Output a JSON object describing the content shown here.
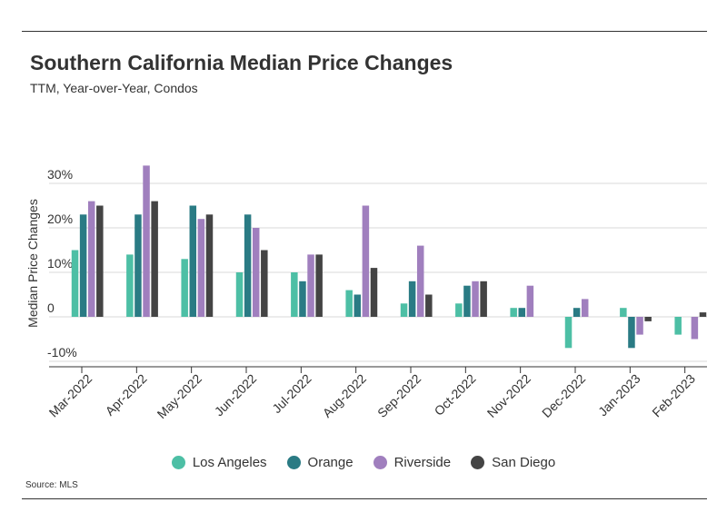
{
  "header": {
    "title": "Southern California Median Price Changes",
    "subtitle": "TTM, Year-over-Year, Condos"
  },
  "source": "Source: MLS",
  "chart_data": {
    "type": "bar",
    "title": "Southern California Median Price Changes",
    "subtitle": "TTM, Year-over-Year, Condos",
    "xlabel": "",
    "ylabel": "Median Price Changes",
    "ylim": [
      -12,
      35
    ],
    "yticks": [
      -10,
      0,
      10,
      20,
      30
    ],
    "ytick_labels": [
      "-10%",
      "0",
      "10%",
      "20%",
      "30%"
    ],
    "grid": true,
    "legend_position": "bottom",
    "categories": [
      "Mar-2022",
      "Apr-2022",
      "May-2022",
      "Jun-2022",
      "Jul-2022",
      "Aug-2022",
      "Sep-2022",
      "Oct-2022",
      "Nov-2022",
      "Dec-2022",
      "Jan-2023",
      "Feb-2023"
    ],
    "series": [
      {
        "name": "Los Angeles",
        "color": "#4dbfa5",
        "values": [
          15,
          14,
          13,
          10,
          10,
          6,
          3,
          3,
          2,
          -7,
          2,
          -4
        ]
      },
      {
        "name": "Orange",
        "color": "#2a7b84",
        "values": [
          23,
          23,
          25,
          23,
          8,
          5,
          8,
          7,
          2,
          2,
          -7,
          0
        ]
      },
      {
        "name": "Riverside",
        "color": "#a07fbe",
        "values": [
          26,
          34,
          22,
          20,
          14,
          25,
          16,
          8,
          7,
          4,
          -4,
          -5
        ]
      },
      {
        "name": "San Diego",
        "color": "#444444",
        "values": [
          25,
          26,
          23,
          15,
          14,
          11,
          5,
          8,
          0,
          0,
          -1,
          1
        ]
      }
    ]
  }
}
